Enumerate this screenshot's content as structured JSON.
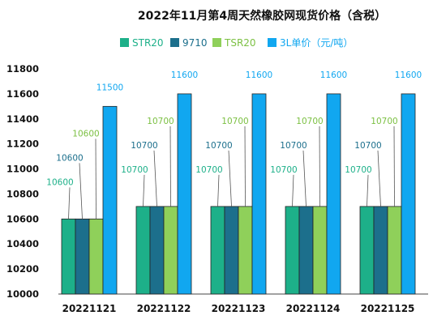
{
  "chart_data": {
    "type": "bar",
    "title": "2022年11月第4周天然橡胶网现货价格（含税）",
    "xlabel": "",
    "ylabel": "",
    "categories": [
      "20221121",
      "20221122",
      "20221123",
      "20221124",
      "20221125"
    ],
    "series": [
      {
        "name": "STR20",
        "color": "#1db089",
        "label_color": "#1db089",
        "values": [
          10600,
          10700,
          10700,
          10700,
          10700
        ]
      },
      {
        "name": "9710",
        "color": "#1c6f8c",
        "label_color": "#1c6f8c",
        "values": [
          10600,
          10700,
          10700,
          10700,
          10700
        ]
      },
      {
        "name": "TSR20",
        "color": "#8fd05a",
        "label_color": "#7cc043",
        "values": [
          10600,
          10700,
          10700,
          10700,
          10700
        ]
      },
      {
        "name": "3L单价（元/吨）",
        "color": "#11a7f0",
        "label_color": "#11a7f0",
        "values": [
          11500,
          11600,
          11600,
          11600,
          11600
        ]
      }
    ],
    "ylim": [
      10000,
      11800
    ],
    "yticks": [
      10000,
      10200,
      10400,
      10600,
      10800,
      11000,
      11200,
      11400,
      11600,
      11800
    ],
    "grid": false,
    "legend": "top"
  }
}
